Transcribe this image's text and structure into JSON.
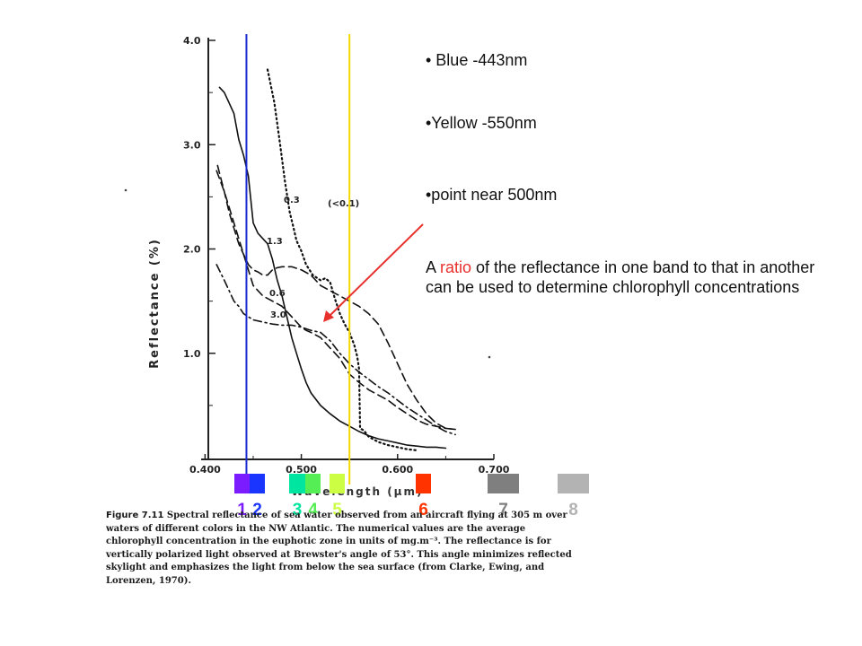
{
  "chart_data": {
    "type": "line",
    "title": "",
    "xlabel": "Wavelength (μm)",
    "ylabel": "Reflectance (%)",
    "xlim": [
      0.395,
      0.7
    ],
    "ylim": [
      0,
      4.0
    ],
    "x_ticks": [
      "0.400",
      "0.500",
      "0.600",
      "0.700"
    ],
    "y_ticks": [
      "1.0",
      "2.0",
      "3.0",
      "4.0"
    ],
    "grid": false,
    "series": [
      {
        "name": "(<0.1)",
        "style": "dotted",
        "x": [
          0.465,
          0.472,
          0.478,
          0.483,
          0.488,
          0.492,
          0.495,
          0.5,
          0.505,
          0.512,
          0.52,
          0.525,
          0.53,
          0.535,
          0.54,
          0.545,
          0.55,
          0.555,
          0.558,
          0.56,
          0.561,
          0.565,
          0.57,
          0.58,
          0.59,
          0.6,
          0.61,
          0.62
        ],
        "y": [
          3.72,
          3.4,
          3.0,
          2.65,
          2.35,
          2.2,
          2.08,
          1.98,
          1.85,
          1.75,
          1.7,
          1.72,
          1.68,
          1.52,
          1.38,
          1.28,
          1.2,
          1.08,
          0.97,
          0.85,
          0.28,
          0.26,
          0.2,
          0.15,
          0.12,
          0.1,
          0.08,
          0.07
        ]
      },
      {
        "name": "0.3",
        "style": "solid",
        "x": [
          0.415,
          0.42,
          0.425,
          0.43,
          0.435,
          0.44,
          0.445,
          0.45,
          0.455,
          0.46,
          0.465,
          0.47,
          0.475,
          0.48,
          0.485,
          0.49,
          0.495,
          0.5,
          0.505,
          0.51,
          0.52,
          0.53,
          0.54,
          0.55,
          0.56,
          0.57,
          0.58,
          0.59,
          0.6,
          0.61,
          0.62,
          0.63,
          0.64,
          0.65
        ],
        "y": [
          3.55,
          3.5,
          3.4,
          3.3,
          3.05,
          2.9,
          2.7,
          2.25,
          2.15,
          2.1,
          2.05,
          1.9,
          1.7,
          1.55,
          1.35,
          1.15,
          1.0,
          0.85,
          0.72,
          0.62,
          0.5,
          0.42,
          0.35,
          0.3,
          0.25,
          0.21,
          0.18,
          0.16,
          0.14,
          0.12,
          0.11,
          0.1,
          0.1,
          0.09
        ]
      },
      {
        "name": "1.3",
        "style": "dashed",
        "x": [
          0.413,
          0.42,
          0.425,
          0.43,
          0.435,
          0.44,
          0.445,
          0.45,
          0.455,
          0.46,
          0.465,
          0.47,
          0.475,
          0.48,
          0.49,
          0.5,
          0.51,
          0.52,
          0.53,
          0.54,
          0.55,
          0.56,
          0.57,
          0.58,
          0.59,
          0.6,
          0.61,
          0.62,
          0.63,
          0.64,
          0.65,
          0.66
        ],
        "y": [
          2.8,
          2.55,
          2.35,
          2.2,
          2.05,
          1.95,
          1.85,
          1.8,
          1.78,
          1.75,
          1.75,
          1.8,
          1.82,
          1.83,
          1.83,
          1.8,
          1.75,
          1.65,
          1.6,
          1.55,
          1.5,
          1.45,
          1.38,
          1.28,
          1.1,
          0.9,
          0.7,
          0.55,
          0.42,
          0.33,
          0.28,
          0.27
        ]
      },
      {
        "name": "0.6",
        "style": "dashed",
        "x": [
          0.412,
          0.42,
          0.425,
          0.43,
          0.435,
          0.44,
          0.445,
          0.45,
          0.46,
          0.47,
          0.48,
          0.49,
          0.5,
          0.505,
          0.51,
          0.52,
          0.53,
          0.54,
          0.55,
          0.56,
          0.57,
          0.58,
          0.59,
          0.6,
          0.61,
          0.62,
          0.63,
          0.64,
          0.65,
          0.66
        ],
        "y": [
          2.75,
          2.55,
          2.4,
          2.25,
          2.1,
          1.95,
          1.8,
          1.65,
          1.55,
          1.5,
          1.45,
          1.35,
          1.25,
          1.22,
          1.2,
          1.15,
          1.05,
          0.95,
          0.8,
          0.72,
          0.65,
          0.6,
          0.55,
          0.48,
          0.42,
          0.36,
          0.32,
          0.3,
          0.28,
          0.27
        ]
      },
      {
        "name": "3.0",
        "style": "dashdot",
        "x": [
          0.412,
          0.42,
          0.425,
          0.43,
          0.435,
          0.44,
          0.445,
          0.45,
          0.46,
          0.47,
          0.48,
          0.49,
          0.5,
          0.51,
          0.52,
          0.53,
          0.54,
          0.55,
          0.56,
          0.57,
          0.58,
          0.59,
          0.6,
          0.61,
          0.62,
          0.63,
          0.64,
          0.65,
          0.66
        ],
        "y": [
          1.85,
          1.7,
          1.6,
          1.5,
          1.45,
          1.38,
          1.35,
          1.32,
          1.3,
          1.28,
          1.27,
          1.27,
          1.25,
          1.22,
          1.2,
          1.12,
          1.0,
          0.9,
          0.82,
          0.75,
          0.68,
          0.62,
          0.55,
          0.48,
          0.42,
          0.36,
          0.3,
          0.25,
          0.22
        ]
      }
    ],
    "markers": [
      {
        "name": "blue-line",
        "x": 0.443,
        "color": "#1a2acc"
      },
      {
        "name": "yellow-line",
        "x": 0.55,
        "color": "#f5d800"
      }
    ]
  },
  "bands": [
    {
      "num": "1",
      "color": "#7a1cff"
    },
    {
      "num": "2",
      "color": "#1a35ff"
    },
    {
      "num": "3",
      "color": "#00e5a0"
    },
    {
      "num": "4",
      "color": "#55ee55"
    },
    {
      "num": "5",
      "color": "#ccff44"
    },
    {
      "num": "6",
      "color": "#ff3300"
    },
    {
      "num": "7",
      "color": "#7f7f7f"
    },
    {
      "num": "8",
      "color": "#b3b3b3"
    }
  ],
  "notes": {
    "blue": "• Blue -443nm",
    "yellow": "•Yellow -550nm",
    "point": "•point near 500nm",
    "ratio_pre": "A ",
    "ratio_word": "ratio",
    "ratio_post": " of the reflectance in one band to that in another can be used to determine chlorophyll concentrations"
  },
  "caption": {
    "label": "Figure 7.11",
    "text": "Spectral reflectance of sea water observed from an aircraft flying at 305 m over waters of different colors in the NW Atlantic. The numerical values are the average chlorophyll concentration in the euphotic zone in units of mg.m⁻³. The reflectance is for vertically polarized light observed at Brewster's angle of 53°. This angle minimizes reflected skylight and emphasizes the light from below the sea surface (from Clarke, Ewing, and Lorenzen, 1970)."
  }
}
